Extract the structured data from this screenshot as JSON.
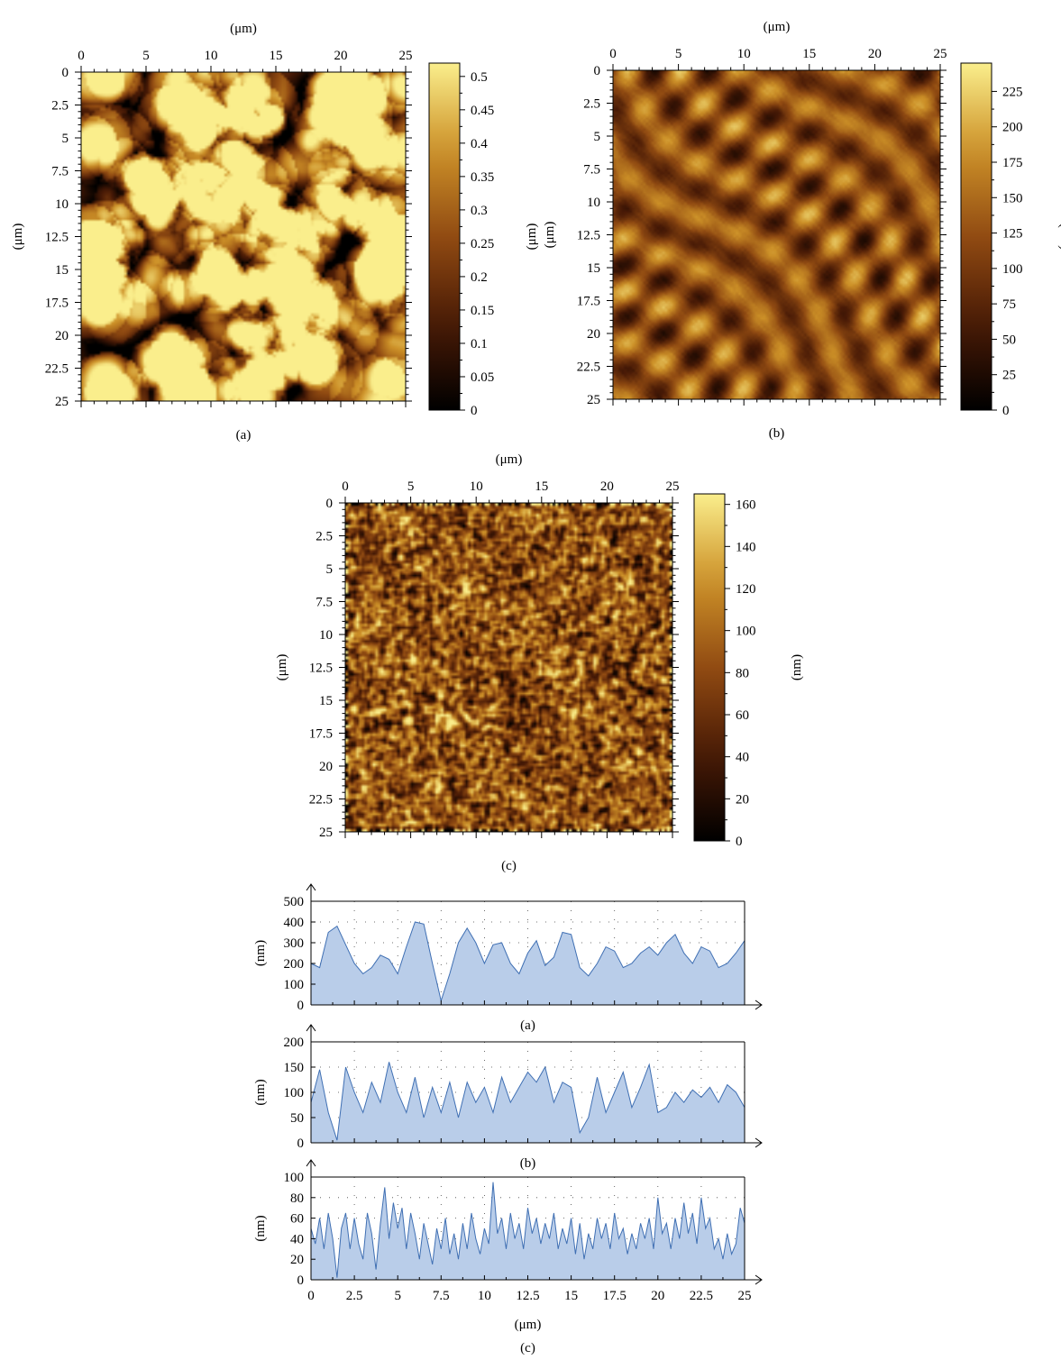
{
  "chart_data": [
    {
      "type": "heatmap",
      "panel_label": "(a)",
      "x_unit_label": "(μm)",
      "y_unit_label": "(μm)",
      "xlim": [
        0,
        25
      ],
      "ylim": [
        0,
        25
      ],
      "x_ticks": [
        "0",
        "5",
        "10",
        "15",
        "20",
        "25"
      ],
      "y_ticks": [
        "0",
        "2.5",
        "5",
        "7.5",
        "10",
        "12.5",
        "15",
        "17.5",
        "20",
        "22.5",
        "25"
      ],
      "colorbar": {
        "label": "(μm)",
        "range": [
          0,
          0.52
        ],
        "ticks": [
          "0",
          "0.05",
          "0.1",
          "0.15",
          "0.2",
          "0.25",
          "0.3",
          "0.35",
          "0.4",
          "0.45",
          "0.5"
        ]
      },
      "texture": "grains"
    },
    {
      "type": "heatmap",
      "panel_label": "(b)",
      "x_unit_label": "(μm)",
      "y_unit_label": "(μm)",
      "xlim": [
        0,
        25
      ],
      "ylim": [
        0,
        25
      ],
      "x_ticks": [
        "0",
        "5",
        "10",
        "15",
        "20",
        "25"
      ],
      "y_ticks": [
        "0",
        "2.5",
        "5",
        "7.5",
        "10",
        "12.5",
        "15",
        "17.5",
        "20",
        "22.5",
        "25"
      ],
      "colorbar": {
        "label": "(nm)",
        "range": [
          0,
          245
        ],
        "ticks": [
          "0",
          "25",
          "50",
          "75",
          "100",
          "125",
          "150",
          "175",
          "200",
          "225"
        ]
      },
      "texture": "dendrites"
    },
    {
      "type": "heatmap",
      "panel_label": "(c)",
      "x_unit_label": "(μm)",
      "y_unit_label": "(μm)",
      "xlim": [
        0,
        25
      ],
      "ylim": [
        0,
        25
      ],
      "x_ticks": [
        "0",
        "5",
        "10",
        "15",
        "20",
        "25"
      ],
      "y_ticks": [
        "0",
        "2.5",
        "5",
        "7.5",
        "10",
        "12.5",
        "15",
        "17.5",
        "20",
        "22.5",
        "25"
      ],
      "colorbar": {
        "label": "(nm)",
        "range": [
          0,
          165
        ],
        "ticks": [
          "0",
          "20",
          "40",
          "60",
          "80",
          "100",
          "120",
          "140",
          "160"
        ]
      },
      "texture": "fine"
    },
    {
      "type": "area",
      "panel_label": "(a)",
      "ylabel": "(nm)",
      "xlim": [
        0,
        25
      ],
      "ylim": [
        0,
        500
      ],
      "y_ticks": [
        "0",
        "100",
        "200",
        "300",
        "400",
        "500"
      ],
      "x": [
        0,
        0.5,
        1,
        1.5,
        2,
        2.5,
        3,
        3.5,
        4,
        4.5,
        5,
        5.5,
        6,
        6.5,
        7,
        7.5,
        8,
        8.5,
        9,
        9.5,
        10,
        10.5,
        11,
        11.5,
        12,
        12.5,
        13,
        13.5,
        14,
        14.5,
        15,
        15.5,
        16,
        16.5,
        17,
        17.5,
        18,
        18.5,
        19,
        19.5,
        20,
        20.5,
        21,
        21.5,
        22,
        22.5,
        23,
        23.5,
        24,
        24.5,
        25
      ],
      "y": [
        200,
        180,
        350,
        380,
        290,
        200,
        150,
        180,
        240,
        220,
        150,
        280,
        400,
        390,
        200,
        20,
        150,
        300,
        370,
        300,
        200,
        290,
        300,
        200,
        150,
        250,
        310,
        190,
        230,
        350,
        340,
        180,
        140,
        200,
        280,
        260,
        180,
        200,
        250,
        280,
        240,
        300,
        340,
        250,
        200,
        280,
        260,
        180,
        200,
        250,
        310
      ]
    },
    {
      "type": "area",
      "panel_label": "(b)",
      "ylabel": "(nm)",
      "xlim": [
        0,
        25
      ],
      "ylim": [
        0,
        200
      ],
      "y_ticks": [
        "0",
        "50",
        "100",
        "150",
        "200"
      ],
      "x": [
        0,
        0.5,
        1,
        1.5,
        2,
        2.5,
        3,
        3.5,
        4,
        4.5,
        5,
        5.5,
        6,
        6.5,
        7,
        7.5,
        8,
        8.5,
        9,
        9.5,
        10,
        10.5,
        11,
        11.5,
        12,
        12.5,
        13,
        13.5,
        14,
        14.5,
        15,
        15.5,
        16,
        16.5,
        17,
        17.5,
        18,
        18.5,
        19,
        19.5,
        20,
        20.5,
        21,
        21.5,
        22,
        22.5,
        23,
        23.5,
        24,
        24.5,
        25
      ],
      "y": [
        80,
        145,
        60,
        5,
        150,
        100,
        60,
        120,
        80,
        160,
        100,
        60,
        130,
        50,
        110,
        60,
        120,
        50,
        120,
        80,
        110,
        60,
        130,
        80,
        110,
        140,
        120,
        150,
        80,
        120,
        110,
        20,
        50,
        130,
        60,
        100,
        140,
        70,
        110,
        155,
        60,
        70,
        100,
        80,
        105,
        90,
        110,
        80,
        115,
        100,
        70
      ]
    },
    {
      "type": "area",
      "panel_label": "(c)",
      "ylabel": "(nm)",
      "xlabel": "(μm)",
      "xlim": [
        0,
        25
      ],
      "ylim": [
        0,
        100
      ],
      "x_ticks": [
        "0",
        "2.5",
        "5",
        "7.5",
        "10",
        "12.5",
        "15",
        "17.5",
        "20",
        "22.5",
        "25"
      ],
      "y_ticks": [
        "0",
        "20",
        "40",
        "60",
        "80",
        "100"
      ],
      "x": [
        0,
        0.25,
        0.5,
        0.75,
        1,
        1.25,
        1.5,
        1.75,
        2,
        2.25,
        2.5,
        2.75,
        3,
        3.25,
        3.5,
        3.75,
        4,
        4.25,
        4.5,
        4.75,
        5,
        5.25,
        5.5,
        5.75,
        6,
        6.25,
        6.5,
        6.75,
        7,
        7.25,
        7.5,
        7.75,
        8,
        8.25,
        8.5,
        8.75,
        9,
        9.25,
        9.5,
        9.75,
        10,
        10.25,
        10.5,
        10.75,
        11,
        11.25,
        11.5,
        11.75,
        12,
        12.25,
        12.5,
        12.75,
        13,
        13.25,
        13.5,
        13.75,
        14,
        14.25,
        14.5,
        14.75,
        15,
        15.25,
        15.5,
        15.75,
        16,
        16.25,
        16.5,
        16.75,
        17,
        17.25,
        17.5,
        17.75,
        18,
        18.25,
        18.5,
        18.75,
        19,
        19.25,
        19.5,
        19.75,
        20,
        20.25,
        20.5,
        20.75,
        21,
        21.25,
        21.5,
        21.75,
        22,
        22.25,
        22.5,
        22.75,
        23,
        23.25,
        23.5,
        23.75,
        24,
        24.25,
        24.5,
        24.75,
        25
      ],
      "y": [
        50,
        35,
        60,
        30,
        65,
        40,
        2,
        50,
        65,
        30,
        60,
        35,
        20,
        65,
        45,
        10,
        55,
        90,
        40,
        75,
        50,
        70,
        30,
        65,
        45,
        20,
        55,
        35,
        15,
        50,
        30,
        60,
        25,
        45,
        20,
        55,
        30,
        65,
        40,
        25,
        50,
        35,
        95,
        45,
        60,
        30,
        65,
        40,
        55,
        30,
        70,
        45,
        60,
        35,
        55,
        40,
        65,
        30,
        50,
        35,
        60,
        25,
        55,
        20,
        45,
        30,
        60,
        40,
        55,
        30,
        65,
        40,
        50,
        25,
        45,
        30,
        55,
        40,
        60,
        30,
        80,
        45,
        55,
        30,
        60,
        40,
        75,
        45,
        65,
        35,
        80,
        50,
        60,
        30,
        40,
        20,
        45,
        25,
        35,
        70,
        55
      ]
    }
  ]
}
